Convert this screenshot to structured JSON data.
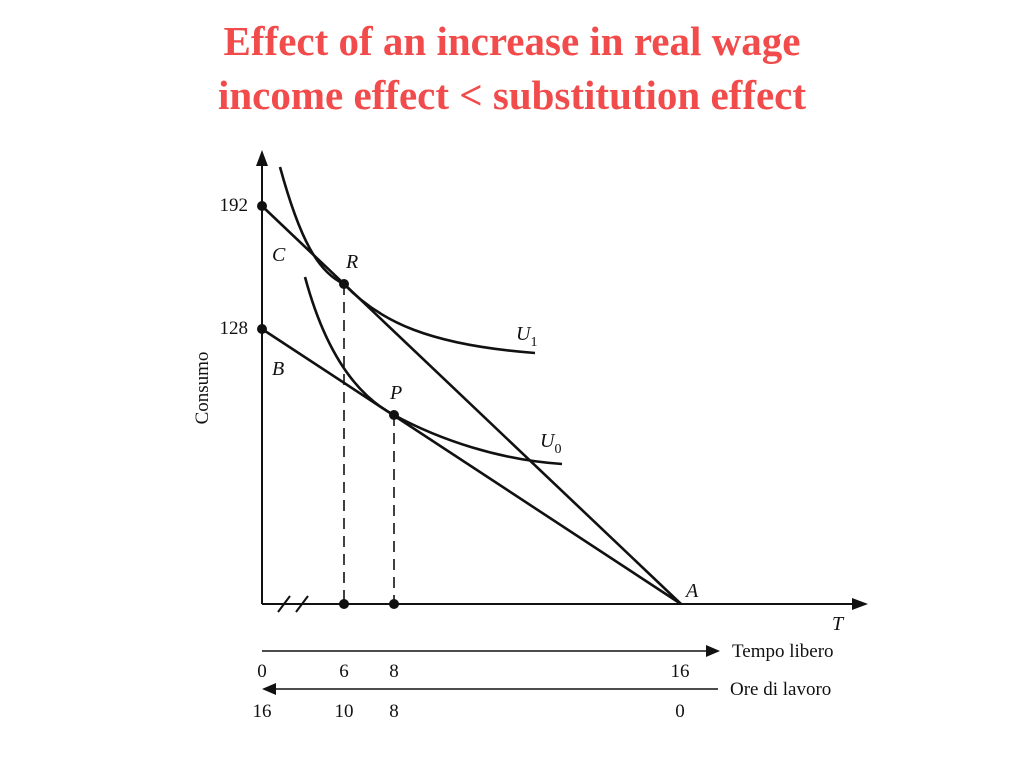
{
  "title": {
    "line1": "Effect of an increase in real wage",
    "line2": "income effect < substitution effect"
  },
  "colors": {
    "title": "#f24b4b",
    "ink": "#111111"
  },
  "axes": {
    "y_label": "Consumo",
    "x_label": "T",
    "y_ticks": [
      "192",
      "128"
    ]
  },
  "points": {
    "C": "C",
    "B": "B",
    "R": "R",
    "P": "P",
    "A": "A"
  },
  "curves": {
    "u1_base": "U",
    "u1_sub": "1",
    "u0_base": "U",
    "u0_sub": "0"
  },
  "scales": {
    "tempo_libero": {
      "label": "Tempo libero",
      "ticks": [
        "0",
        "6",
        "8",
        "16"
      ]
    },
    "ore_di_lavoro": {
      "label": "Ore di lavoro",
      "ticks": [
        "16",
        "10",
        "8",
        "0"
      ]
    }
  }
}
